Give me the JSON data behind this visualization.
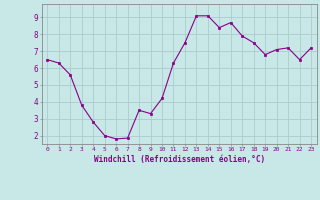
{
  "x": [
    0,
    1,
    2,
    3,
    4,
    5,
    6,
    7,
    8,
    9,
    10,
    11,
    12,
    13,
    14,
    15,
    16,
    17,
    18,
    19,
    20,
    21,
    22,
    23
  ],
  "y": [
    6.5,
    6.3,
    5.6,
    3.8,
    2.8,
    2.0,
    1.8,
    1.85,
    3.5,
    3.3,
    4.2,
    6.3,
    7.5,
    9.1,
    9.1,
    8.4,
    8.7,
    7.9,
    7.5,
    6.8,
    7.1,
    7.2,
    6.5,
    7.2
  ],
  "xlabel": "Windchill (Refroidissement éolien,°C)",
  "ylim": [
    1.5,
    9.8
  ],
  "xlim": [
    -0.5,
    23.5
  ],
  "yticks": [
    2,
    3,
    4,
    5,
    6,
    7,
    8,
    9
  ],
  "xticks": [
    0,
    1,
    2,
    3,
    4,
    5,
    6,
    7,
    8,
    9,
    10,
    11,
    12,
    13,
    14,
    15,
    16,
    17,
    18,
    19,
    20,
    21,
    22,
    23
  ],
  "xtick_labels": [
    "0",
    "1",
    "2",
    "3",
    "4",
    "5",
    "6",
    "7",
    "8",
    "9",
    "10",
    "11",
    "12",
    "13",
    "14",
    "15",
    "16",
    "17",
    "18",
    "19",
    "20",
    "21",
    "22",
    "23"
  ],
  "line_color": "#880088",
  "marker_color": "#880088",
  "bg_color": "#c8e8e8",
  "grid_color": "#aacccc",
  "axis_label_color": "#880088",
  "tick_label_color": "#880088"
}
